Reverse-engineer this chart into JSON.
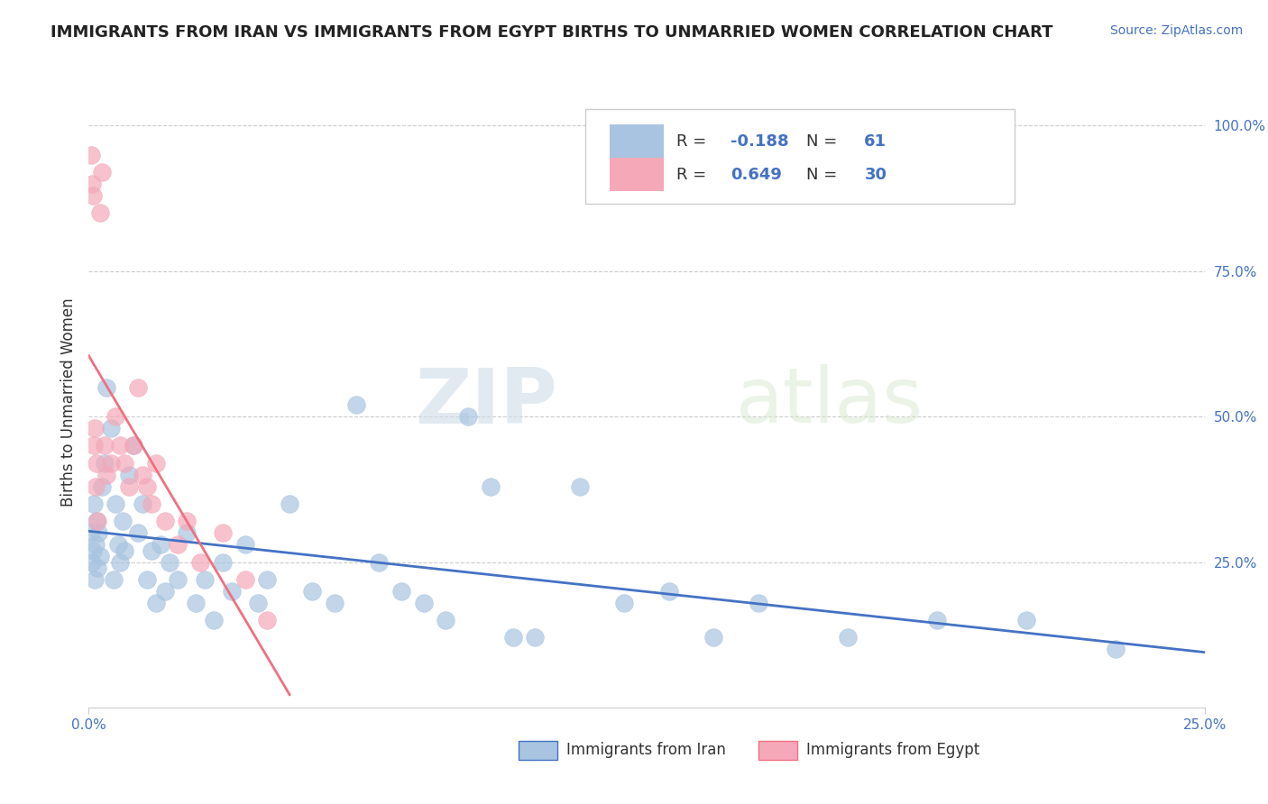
{
  "title": "IMMIGRANTS FROM IRAN VS IMMIGRANTS FROM EGYPT BIRTHS TO UNMARRIED WOMEN CORRELATION CHART",
  "source": "Source: ZipAtlas.com",
  "ylabel": "Births to Unmarried Women",
  "xlim": [
    0.0,
    25.0
  ],
  "ylim": [
    0.0,
    105.0
  ],
  "iran_R": -0.188,
  "iran_N": 61,
  "egypt_R": 0.649,
  "egypt_N": 30,
  "iran_color": "#a8c4e0",
  "egypt_color": "#f4a8b8",
  "iran_line_color": "#4472c4",
  "egypt_line_color": "#f07080",
  "watermark_zip": "ZIP",
  "watermark_atlas": "atlas",
  "background_color": "#ffffff",
  "iran_x": [
    0.05,
    0.08,
    0.1,
    0.12,
    0.14,
    0.16,
    0.18,
    0.2,
    0.22,
    0.25,
    0.3,
    0.35,
    0.4,
    0.5,
    0.55,
    0.6,
    0.65,
    0.7,
    0.75,
    0.8,
    0.9,
    1.0,
    1.1,
    1.2,
    1.3,
    1.4,
    1.5,
    1.6,
    1.7,
    1.8,
    2.0,
    2.2,
    2.4,
    2.6,
    2.8,
    3.0,
    3.2,
    3.5,
    3.8,
    4.0,
    4.5,
    5.0,
    5.5,
    6.0,
    6.5,
    7.0,
    7.5,
    8.0,
    8.5,
    9.0,
    9.5,
    10.0,
    11.0,
    12.0,
    13.0,
    14.0,
    15.0,
    17.0,
    19.0,
    21.0,
    23.0
  ],
  "iran_y": [
    30,
    25,
    27,
    35,
    22,
    28,
    32,
    24,
    30,
    26,
    38,
    42,
    55,
    48,
    22,
    35,
    28,
    25,
    32,
    27,
    40,
    45,
    30,
    35,
    22,
    27,
    18,
    28,
    20,
    25,
    22,
    30,
    18,
    22,
    15,
    25,
    20,
    28,
    18,
    22,
    35,
    20,
    18,
    52,
    25,
    20,
    18,
    15,
    50,
    38,
    12,
    12,
    38,
    18,
    20,
    12,
    18,
    12,
    15,
    15,
    10
  ],
  "egypt_x": [
    0.05,
    0.08,
    0.1,
    0.12,
    0.14,
    0.16,
    0.18,
    0.2,
    0.25,
    0.3,
    0.35,
    0.4,
    0.5,
    0.6,
    0.7,
    0.8,
    0.9,
    1.0,
    1.1,
    1.2,
    1.3,
    1.4,
    1.5,
    1.7,
    2.0,
    2.2,
    2.5,
    3.0,
    3.5,
    4.0
  ],
  "egypt_y": [
    95,
    90,
    88,
    45,
    48,
    38,
    42,
    32,
    85,
    92,
    45,
    40,
    42,
    50,
    45,
    42,
    38,
    45,
    55,
    40,
    38,
    35,
    42,
    32,
    28,
    32,
    25,
    30,
    22,
    15
  ]
}
